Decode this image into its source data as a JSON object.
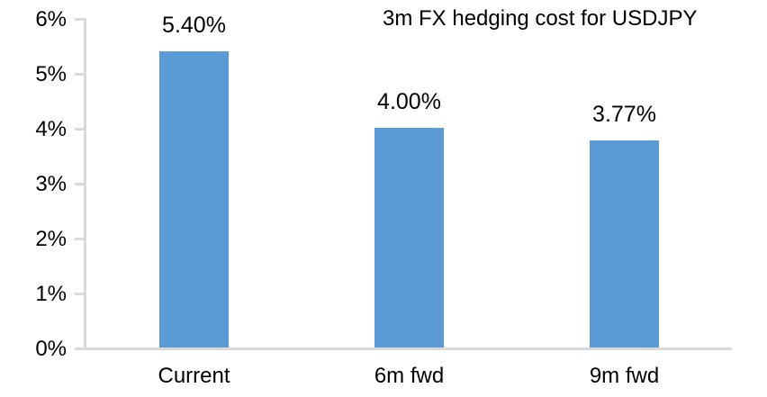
{
  "title": "3m FX hedging cost for USDJPY",
  "colors": {
    "bar": "#5B9BD5",
    "axis": "#D9D9D9",
    "text": "#000000",
    "background": "#FFFFFF"
  },
  "chart_data": {
    "type": "bar",
    "title": "3m FX hedging cost for USDJPY",
    "categories": [
      "Current",
      "6m fwd",
      "9m fwd"
    ],
    "values": [
      5.4,
      4.0,
      3.77
    ],
    "data_labels": [
      "5.40%",
      "4.00%",
      "3.77%"
    ],
    "y_ticks": [
      "0%",
      "1%",
      "2%",
      "3%",
      "4%",
      "5%",
      "6%"
    ],
    "xlabel": "",
    "ylabel": "",
    "ylim": [
      0,
      6
    ],
    "y_tick_step": 1,
    "grid": false,
    "legend": false,
    "bar_color": "#5B9BD5",
    "data_label_position": "above-bar"
  }
}
